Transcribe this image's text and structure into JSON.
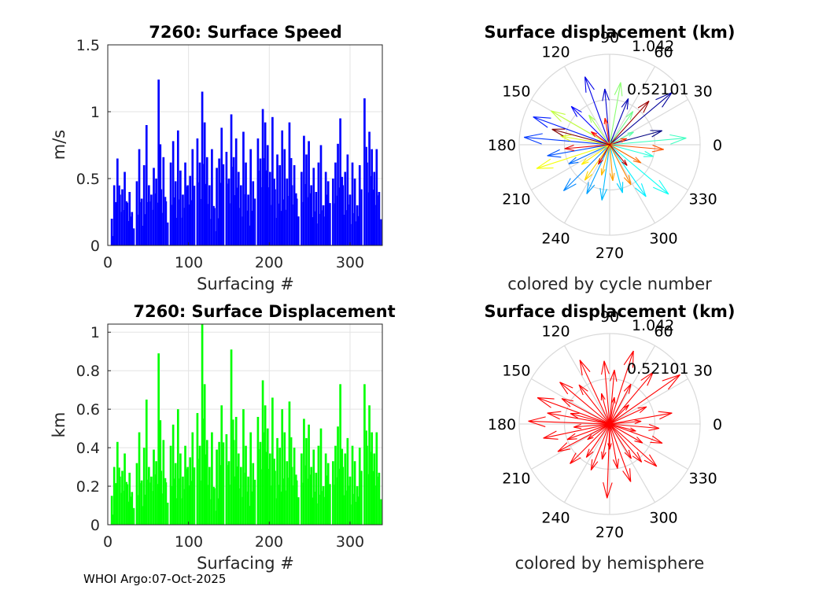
{
  "float_id": "7260",
  "footer": "WHOI Argo:07-Oct-2025",
  "chart_data": [
    {
      "type": "bar",
      "title": "7260: Surface Speed",
      "xlabel": "Surfacing #",
      "ylabel": "m/s",
      "xlim": [
        0,
        340
      ],
      "ylim": [
        0,
        1.5
      ],
      "xticks": [
        "0",
        "100",
        "200",
        "300"
      ],
      "yticks": [
        "0",
        "0.5",
        "1",
        "1.5"
      ],
      "color": "#0000ff",
      "x": [
        5,
        8,
        12,
        15,
        18,
        21,
        24,
        27,
        30,
        36,
        39,
        42,
        45,
        48,
        51,
        54,
        57,
        60,
        63,
        66,
        69,
        72,
        78,
        81,
        84,
        87,
        90,
        93,
        96,
        99,
        102,
        105,
        111,
        114,
        117,
        120,
        123,
        126,
        129,
        132,
        135,
        138,
        141,
        147,
        150,
        153,
        156,
        159,
        162,
        165,
        168,
        171,
        174,
        177,
        180,
        186,
        189,
        192,
        195,
        198,
        201,
        204,
        207,
        210,
        213,
        216,
        219,
        222,
        225,
        228,
        231,
        234,
        240,
        243,
        246,
        249,
        252,
        255,
        258,
        261,
        264,
        267,
        270,
        273,
        279,
        282,
        285,
        288,
        291,
        294,
        297,
        300,
        303,
        306,
        309,
        312,
        318,
        321,
        324,
        327,
        330,
        333,
        336
      ],
      "values": [
        0.2,
        0.45,
        0.65,
        0.38,
        0.42,
        0.55,
        0.32,
        0.4,
        0.25,
        0.48,
        0.72,
        0.35,
        0.6,
        0.9,
        0.45,
        0.38,
        0.58,
        0.5,
        1.24,
        0.42,
        0.66,
        0.33,
        0.62,
        0.78,
        0.48,
        0.86,
        0.56,
        0.38,
        0.62,
        0.45,
        0.52,
        0.72,
        0.8,
        0.62,
        1.15,
        0.92,
        0.66,
        0.45,
        0.72,
        0.28,
        0.58,
        0.65,
        0.88,
        0.7,
        0.5,
        0.98,
        0.66,
        0.8,
        0.55,
        0.45,
        0.85,
        0.62,
        0.38,
        0.72,
        0.48,
        0.8,
        0.65,
        1.02,
        0.92,
        0.75,
        0.55,
        0.96,
        0.42,
        0.68,
        0.6,
        0.86,
        0.72,
        0.5,
        0.92,
        0.45,
        0.6,
        0.35,
        0.55,
        0.82,
        0.68,
        0.78,
        0.45,
        0.58,
        0.4,
        0.62,
        0.75,
        0.3,
        0.55,
        0.48,
        0.5,
        0.62,
        0.76,
        0.95,
        0.45,
        0.55,
        0.68,
        0.38,
        0.62,
        0.5,
        0.3,
        0.6,
        1.1,
        0.62,
        0.85,
        0.72,
        0.55,
        0.72,
        0.4
      ]
    },
    {
      "type": "polar-compass",
      "title": "Surface displacement (km)",
      "caption": "colored by cycle number",
      "rmax_label": "1.042",
      "rmid_label": "0.52101",
      "angle_labels": [
        "0",
        "30",
        "60",
        "90",
        "120",
        "150",
        "180",
        "210",
        "240",
        "270",
        "300",
        "330"
      ],
      "colormap": "jet",
      "arrows": [
        {
          "angle": 15,
          "r": 0.6
        },
        {
          "angle": 40,
          "r": 0.9
        },
        {
          "angle": 68,
          "r": 0.55
        },
        {
          "angle": 95,
          "r": 0.62
        },
        {
          "angle": 110,
          "r": 0.8
        },
        {
          "angle": 135,
          "r": 0.6
        },
        {
          "angle": 160,
          "r": 0.9
        },
        {
          "angle": 175,
          "r": 0.95
        },
        {
          "angle": 190,
          "r": 0.7
        },
        {
          "angle": 205,
          "r": 0.5
        },
        {
          "angle": 225,
          "r": 0.72
        },
        {
          "angle": 245,
          "r": 0.6
        },
        {
          "angle": 262,
          "r": 0.62
        },
        {
          "angle": 285,
          "r": 0.55
        },
        {
          "angle": 305,
          "r": 0.7
        },
        {
          "angle": 320,
          "r": 0.85
        },
        {
          "angle": 345,
          "r": 0.5
        },
        {
          "angle": 5,
          "r": 0.85
        },
        {
          "angle": 28,
          "r": 0.3
        },
        {
          "angle": 55,
          "r": 0.45
        },
        {
          "angle": 80,
          "r": 0.7
        },
        {
          "angle": 125,
          "r": 0.4
        },
        {
          "angle": 150,
          "r": 0.75
        },
        {
          "angle": 170,
          "r": 0.55
        },
        {
          "angle": 198,
          "r": 0.85
        },
        {
          "angle": 215,
          "r": 0.38
        },
        {
          "angle": 235,
          "r": 0.48
        },
        {
          "angle": 255,
          "r": 0.35
        },
        {
          "angle": 275,
          "r": 0.4
        },
        {
          "angle": 298,
          "r": 0.5
        },
        {
          "angle": 330,
          "r": 0.4
        },
        {
          "angle": 355,
          "r": 0.6
        },
        {
          "angle": 20,
          "r": 0.2
        },
        {
          "angle": 100,
          "r": 0.3
        },
        {
          "angle": 145,
          "r": 0.25
        },
        {
          "angle": 185,
          "r": 0.5
        },
        {
          "angle": 240,
          "r": 0.25
        },
        {
          "angle": 310,
          "r": 0.3
        },
        {
          "angle": 48,
          "r": 0.65
        },
        {
          "angle": 165,
          "r": 0.66
        }
      ]
    },
    {
      "type": "bar",
      "title": "7260: Surface Displacement",
      "xlabel": "Surfacing #",
      "ylabel": "km",
      "xlim": [
        0,
        340
      ],
      "ylim": [
        0,
        1.042
      ],
      "xticks": [
        "0",
        "100",
        "200",
        "300"
      ],
      "yticks": [
        "0",
        "0.2",
        "0.4",
        "0.6",
        "0.8",
        "1"
      ],
      "color": "#00ff00",
      "x": [
        5,
        8,
        12,
        15,
        18,
        21,
        24,
        27,
        30,
        36,
        39,
        42,
        45,
        48,
        51,
        54,
        57,
        60,
        63,
        66,
        69,
        72,
        78,
        81,
        84,
        87,
        90,
        93,
        96,
        99,
        102,
        105,
        111,
        114,
        117,
        120,
        123,
        126,
        129,
        132,
        135,
        138,
        141,
        147,
        150,
        153,
        156,
        159,
        162,
        165,
        168,
        171,
        174,
        177,
        180,
        186,
        189,
        192,
        195,
        198,
        201,
        204,
        207,
        210,
        213,
        216,
        219,
        222,
        225,
        228,
        231,
        234,
        240,
        243,
        246,
        249,
        252,
        255,
        258,
        261,
        264,
        267,
        270,
        273,
        279,
        282,
        285,
        288,
        291,
        294,
        297,
        300,
        303,
        306,
        309,
        312,
        318,
        321,
        324,
        327,
        330,
        333,
        336
      ],
      "values": [
        0.15,
        0.3,
        0.43,
        0.25,
        0.28,
        0.37,
        0.21,
        0.27,
        0.17,
        0.32,
        0.48,
        0.23,
        0.4,
        0.65,
        0.3,
        0.25,
        0.39,
        0.33,
        0.89,
        0.28,
        0.44,
        0.22,
        0.41,
        0.52,
        0.32,
        0.6,
        0.37,
        0.25,
        0.41,
        0.3,
        0.35,
        0.48,
        0.58,
        0.41,
        1.04,
        0.73,
        0.44,
        0.3,
        0.48,
        0.19,
        0.39,
        0.43,
        0.62,
        0.47,
        0.33,
        0.91,
        0.44,
        0.56,
        0.37,
        0.3,
        0.6,
        0.41,
        0.25,
        0.48,
        0.32,
        0.56,
        0.43,
        0.75,
        0.62,
        0.5,
        0.37,
        0.66,
        0.28,
        0.45,
        0.4,
        0.6,
        0.48,
        0.33,
        0.64,
        0.3,
        0.4,
        0.23,
        0.37,
        0.55,
        0.45,
        0.52,
        0.3,
        0.39,
        0.27,
        0.41,
        0.5,
        0.2,
        0.37,
        0.32,
        0.33,
        0.41,
        0.51,
        0.73,
        0.3,
        0.37,
        0.45,
        0.25,
        0.41,
        0.33,
        0.2,
        0.4,
        0.73,
        0.41,
        0.62,
        0.48,
        0.37,
        0.48,
        0.27
      ]
    },
    {
      "type": "polar-compass",
      "title": "Surface displacement (km)",
      "caption": "colored by hemisphere",
      "rmax_label": "1.042",
      "rmid_label": "0.52101",
      "angle_labels": [
        "0",
        "30",
        "60",
        "90",
        "120",
        "150",
        "180",
        "210",
        "240",
        "270",
        "300",
        "330"
      ],
      "color": "#ff0000",
      "arrows": [
        {
          "angle": 10,
          "r": 0.7
        },
        {
          "angle": 35,
          "r": 0.95
        },
        {
          "angle": 50,
          "r": 0.75
        },
        {
          "angle": 72,
          "r": 0.85
        },
        {
          "angle": 95,
          "r": 0.7
        },
        {
          "angle": 115,
          "r": 0.78
        },
        {
          "angle": 140,
          "r": 0.72
        },
        {
          "angle": 160,
          "r": 0.85
        },
        {
          "angle": 178,
          "r": 0.9
        },
        {
          "angle": 192,
          "r": 0.75
        },
        {
          "angle": 208,
          "r": 0.65
        },
        {
          "angle": 225,
          "r": 0.62
        },
        {
          "angle": 248,
          "r": 0.55
        },
        {
          "angle": 268,
          "r": 0.82
        },
        {
          "angle": 290,
          "r": 0.68
        },
        {
          "angle": 318,
          "r": 0.7
        },
        {
          "angle": 340,
          "r": 0.62
        },
        {
          "angle": 355,
          "r": 0.55
        },
        {
          "angle": 25,
          "r": 0.45
        },
        {
          "angle": 62,
          "r": 0.5
        },
        {
          "angle": 85,
          "r": 0.6
        },
        {
          "angle": 128,
          "r": 0.55
        },
        {
          "angle": 152,
          "r": 0.6
        },
        {
          "angle": 170,
          "r": 0.7
        },
        {
          "angle": 200,
          "r": 0.5
        },
        {
          "angle": 235,
          "r": 0.45
        },
        {
          "angle": 258,
          "r": 0.4
        },
        {
          "angle": 280,
          "r": 0.5
        },
        {
          "angle": 302,
          "r": 0.45
        },
        {
          "angle": 330,
          "r": 0.42
        },
        {
          "angle": 5,
          "r": 0.35
        },
        {
          "angle": 45,
          "r": 0.3
        },
        {
          "angle": 105,
          "r": 0.35
        },
        {
          "angle": 185,
          "r": 0.4
        },
        {
          "angle": 215,
          "r": 0.3
        },
        {
          "angle": 345,
          "r": 0.3
        },
        {
          "angle": 80,
          "r": 0.3
        },
        {
          "angle": 165,
          "r": 0.45
        },
        {
          "angle": 270,
          "r": 0.28
        },
        {
          "angle": 310,
          "r": 0.55
        }
      ]
    }
  ]
}
